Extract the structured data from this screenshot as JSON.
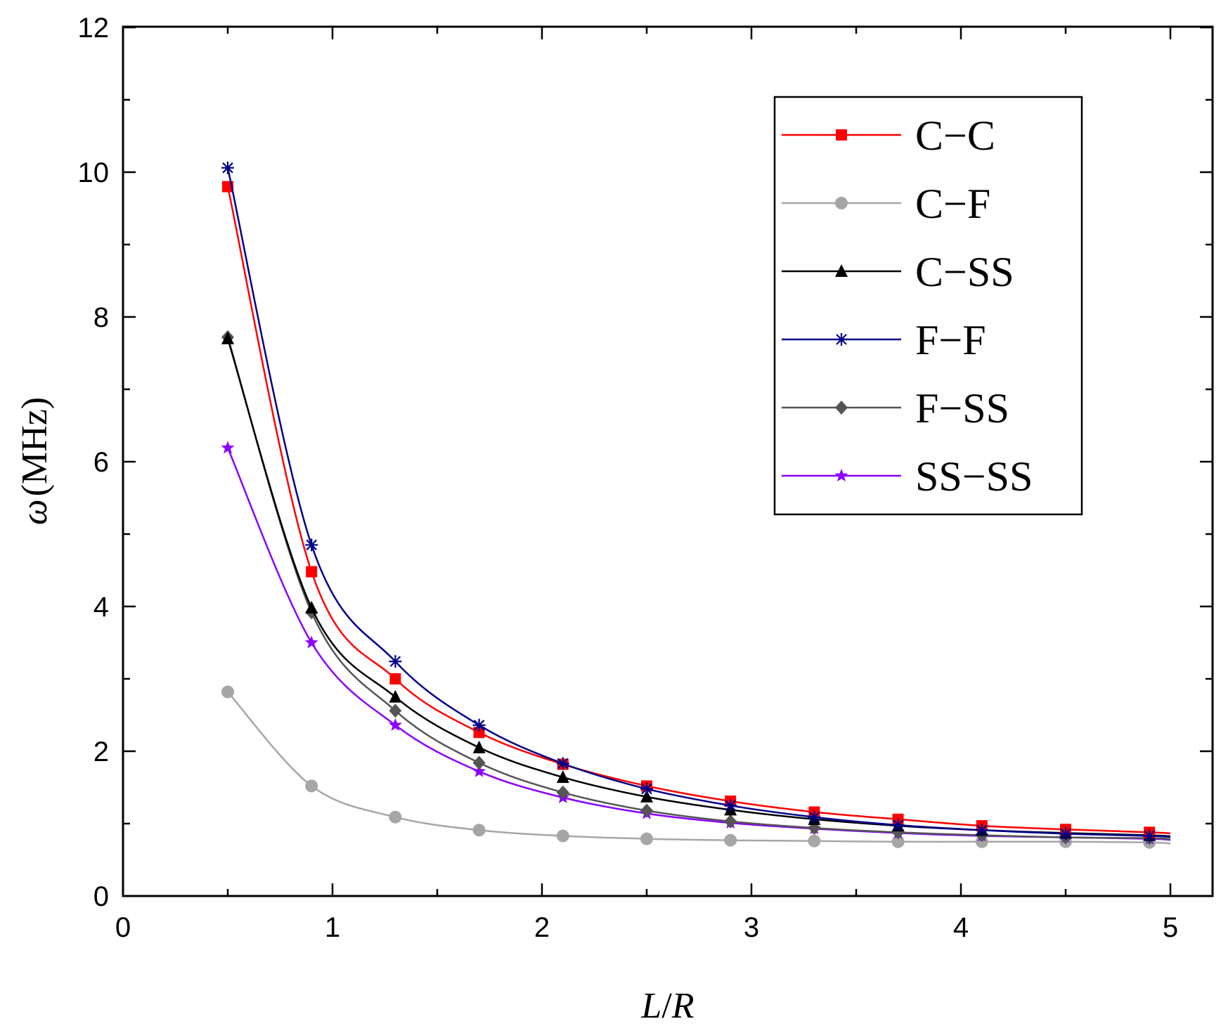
{
  "chart_data": {
    "type": "line",
    "title": "",
    "xlabel": "L/R",
    "xlabel_parts": {
      "L": "L",
      "sep": "/",
      "R": "R"
    },
    "ylabel": "ω (MHz)",
    "ylabel_parts": {
      "symbol": "ω",
      "unit": "(MHz)"
    },
    "xlim": [
      0,
      5.2
    ],
    "ylim": [
      0,
      12
    ],
    "xticks": [
      0,
      1,
      2,
      3,
      4,
      5
    ],
    "yticks": [
      0,
      2,
      4,
      6,
      8,
      10,
      12
    ],
    "grid": false,
    "legend_position": "top-right",
    "x": [
      0.5,
      0.9,
      1.3,
      1.7,
      2.1,
      2.5,
      2.9,
      3.3,
      3.7,
      4.1,
      4.5,
      4.9
    ],
    "series": [
      {
        "name": "C−C",
        "color": "#ff0000",
        "marker": "square",
        "values": [
          9.8,
          4.48,
          3.0,
          2.26,
          1.82,
          1.52,
          1.31,
          1.16,
          1.06,
          0.97,
          0.92,
          0.88
        ]
      },
      {
        "name": "C−F",
        "color": "#a6a6a6",
        "marker": "circle",
        "values": [
          2.82,
          1.52,
          1.09,
          0.91,
          0.83,
          0.79,
          0.77,
          0.76,
          0.75,
          0.75,
          0.75,
          0.74
        ]
      },
      {
        "name": "C−SS",
        "color": "#000000",
        "marker": "triangle",
        "values": [
          7.7,
          3.98,
          2.75,
          2.05,
          1.64,
          1.37,
          1.19,
          1.06,
          0.97,
          0.91,
          0.87,
          0.84
        ]
      },
      {
        "name": "F−F",
        "color": "#00008b",
        "marker": "asterisk",
        "values": [
          10.06,
          4.85,
          3.24,
          2.36,
          1.83,
          1.48,
          1.25,
          1.09,
          0.98,
          0.91,
          0.86,
          0.83
        ]
      },
      {
        "name": "F−SS",
        "color": "#555555",
        "marker": "diamond",
        "values": [
          7.72,
          3.92,
          2.56,
          1.84,
          1.43,
          1.18,
          1.03,
          0.94,
          0.88,
          0.84,
          0.81,
          0.8
        ]
      },
      {
        "name": "SS−SS",
        "color": "#8b00ff",
        "marker": "star",
        "values": [
          6.19,
          3.5,
          2.36,
          1.72,
          1.36,
          1.14,
          1.01,
          0.93,
          0.87,
          0.83,
          0.81,
          0.79
        ]
      }
    ]
  }
}
